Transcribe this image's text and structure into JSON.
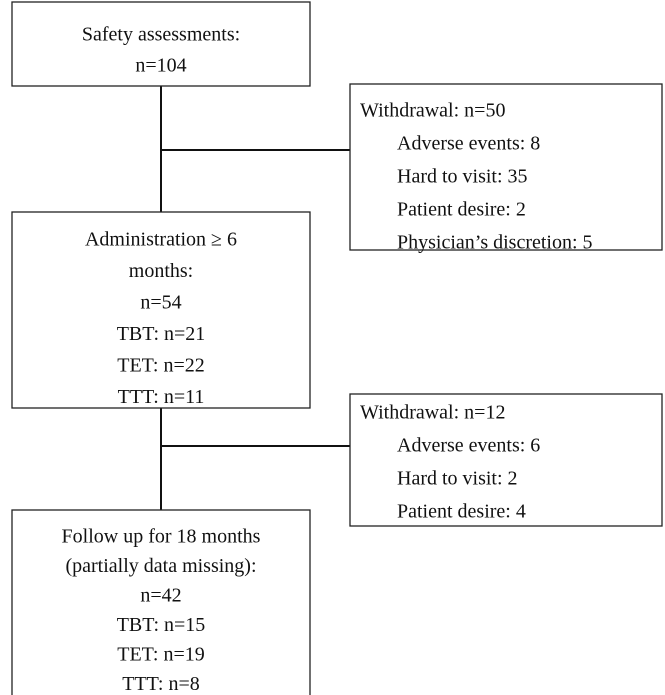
{
  "nodes": [
    {
      "lines": [
        "Safety assessments:",
        "n=104"
      ]
    },
    {
      "lines": [
        "Withdrawal: n=50",
        "Adverse events: 8",
        "Hard to visit: 35",
        "Patient desire: 2",
        "Physician’s discretion: 5"
      ]
    },
    {
      "lines": [
        "Administration ≥ 6",
        "months:",
        "n=54",
        "TBT: n=21",
        "TET: n=22",
        "TTT: n=11"
      ]
    },
    {
      "lines": [
        "Withdrawal: n=12",
        "Adverse events: 6",
        "Hard to visit: 2",
        "Patient desire: 4"
      ]
    },
    {
      "lines": [
        "Follow up for 18 months",
        "(partially data missing):",
        "n=42",
        "TBT: n=15",
        "TET: n=19",
        "TTT: n=8"
      ]
    }
  ]
}
